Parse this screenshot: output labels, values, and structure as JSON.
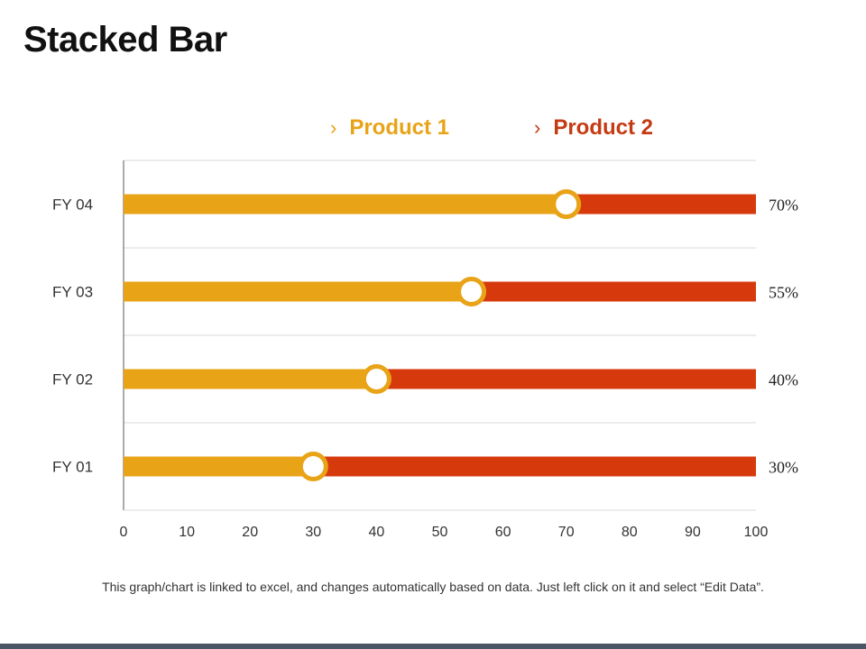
{
  "page": {
    "title": "Stacked Bar"
  },
  "footnote": "This graph/chart is linked to excel, and changes automatically  based on data.  Just left click on it and select “Edit Data”.",
  "colors": {
    "product1": "#E8A317",
    "product2": "#D63A0C",
    "grid": "#d9d9d9",
    "axis": "#595959",
    "text": "#333333"
  },
  "chart_data": {
    "type": "bar",
    "orientation": "horizontal",
    "stacked": true,
    "title": "Stacked Bar",
    "categories": [
      "FY  01",
      "FY  02",
      "FY  03",
      "FY  04"
    ],
    "series": [
      {
        "name": "Product 1",
        "values": [
          30,
          40,
          55,
          70
        ]
      },
      {
        "name": "Product 2",
        "values": [
          70,
          60,
          45,
          30
        ]
      }
    ],
    "data_labels": [
      "30%",
      "40%",
      "55%",
      "70%"
    ],
    "xlim": [
      0,
      100
    ],
    "xticks": [
      "0",
      "10",
      "20",
      "30",
      "40",
      "50",
      "60",
      "70",
      "80",
      "90",
      "100"
    ],
    "legend_position": "top",
    "grid": true
  }
}
